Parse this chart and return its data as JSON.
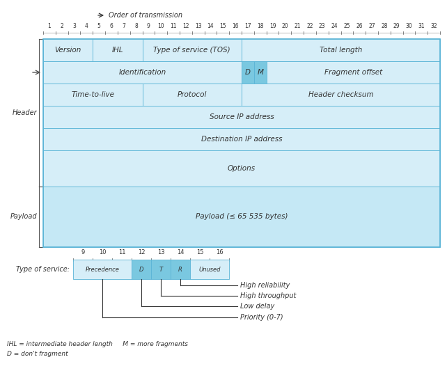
{
  "fig_width": 6.42,
  "fig_height": 5.56,
  "dpi": 100,
  "bg_color": "#ffffff",
  "header_bg": "#d6eef8",
  "payload_bg": "#c5e8f5",
  "cell_edge": "#5ab4d6",
  "dark_cell_bg": "#7ac8e0",
  "title_arrow_text": "Order of transmission",
  "bit_numbers": [
    "1",
    "2",
    "3",
    "4",
    "5",
    "6",
    "7",
    "8",
    "9",
    "10",
    "11",
    "12",
    "13",
    "14",
    "15",
    "16",
    "17",
    "18",
    "19",
    "20",
    "21",
    "22",
    "23",
    "24",
    "25",
    "26",
    "27",
    "28",
    "29",
    "30",
    "31",
    "32"
  ],
  "tos_bits": [
    "9",
    "10",
    "11",
    "12",
    "13",
    "14",
    "15",
    "16"
  ],
  "footnotes": [
    "IHL = intermediate header length     M = more fragments",
    "D = don't fragment"
  ]
}
